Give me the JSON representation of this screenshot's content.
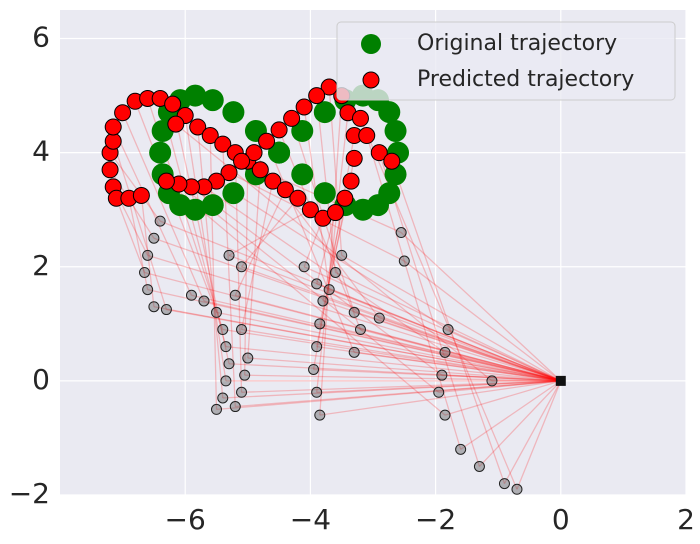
{
  "chart_data": {
    "type": "scatter",
    "xlim": [
      -8,
      2
    ],
    "ylim": [
      -2,
      6.5
    ],
    "xticks": [
      {
        "value": -6,
        "label": "−6"
      },
      {
        "value": -4,
        "label": "−4"
      },
      {
        "value": -2,
        "label": "−2"
      },
      0,
      2
    ],
    "yticks": [
      {
        "value": -2,
        "label": "−2"
      },
      0,
      2,
      4,
      6
    ],
    "grid": true,
    "legend": "upper right",
    "series": [
      {
        "name": "Original trajectory",
        "color": "#008000",
        "x": [
          -2.6,
          -2.64,
          -2.74,
          -2.92,
          -3.16,
          -3.44,
          -3.77,
          -4.13,
          -4.5,
          -4.87,
          -5.23,
          -5.56,
          -5.84,
          -6.08,
          -6.26,
          -6.36,
          -6.4,
          -6.36,
          -6.26,
          -6.08,
          -5.84,
          -5.56,
          -5.23,
          -4.87,
          -4.5,
          -4.13,
          -3.77,
          -3.44,
          -3.16,
          -2.92,
          -2.74,
          -2.64
        ],
        "y": [
          4.0,
          4.38,
          4.71,
          4.92,
          5.0,
          4.92,
          4.71,
          4.38,
          4.0,
          3.62,
          3.29,
          3.08,
          3.0,
          3.08,
          3.29,
          3.62,
          4.0,
          4.38,
          4.71,
          4.92,
          5.0,
          4.92,
          4.71,
          4.38,
          4.0,
          3.62,
          3.29,
          3.08,
          3.0,
          3.08,
          3.29,
          3.62
        ]
      },
      {
        "name": "Predicted trajectory",
        "color": "#ff0000",
        "x": [
          -7.2,
          -7.2,
          -7.15,
          -7.1,
          -6.9,
          -6.7,
          -7.15,
          -7.15,
          -7.0,
          -6.8,
          -6.6,
          -6.4,
          -6.2,
          -6.0,
          -5.8,
          -5.6,
          -5.4,
          -5.2,
          -5.0,
          -4.8,
          -4.6,
          -4.4,
          -4.2,
          -4.0,
          -3.8,
          -3.6,
          -3.45,
          -3.35,
          -3.3,
          -3.3,
          -3.4,
          -3.5,
          -3.7,
          -3.9,
          -4.1,
          -4.3,
          -4.5,
          -4.7,
          -4.9,
          -5.1,
          -5.3,
          -5.5,
          -5.7,
          -5.9,
          -6.1,
          -6.3,
          -3.1,
          -2.9,
          -2.7,
          -3.2,
          -6.15
        ],
        "y": [
          4.0,
          3.7,
          3.4,
          3.2,
          3.2,
          3.25,
          4.2,
          4.45,
          4.7,
          4.9,
          4.95,
          4.95,
          4.85,
          4.65,
          4.45,
          4.3,
          4.15,
          4.0,
          3.85,
          3.7,
          3.5,
          3.35,
          3.2,
          3.0,
          2.85,
          2.95,
          3.2,
          3.5,
          3.9,
          4.3,
          4.7,
          5.0,
          5.15,
          5.0,
          4.8,
          4.6,
          4.4,
          4.2,
          4.0,
          3.85,
          3.65,
          3.5,
          3.4,
          3.4,
          3.45,
          3.5,
          4.3,
          4.0,
          3.85,
          4.6,
          4.5
        ]
      },
      {
        "color": "#555555",
        "x": [
          -6.4,
          -6.5,
          -6.6,
          -6.65,
          -6.6,
          -6.5,
          -6.3,
          -5.9,
          -5.7,
          -5.5,
          -5.4,
          -5.35,
          -5.3,
          -5.35,
          -5.4,
          -5.5,
          -5.2,
          -5.1,
          -5.05,
          -5.0,
          -5.1,
          -5.2,
          -5.1,
          -5.3,
          -4.1,
          -3.9,
          -3.8,
          -3.85,
          -3.9,
          -3.95,
          -3.9,
          -3.85,
          -3.5,
          -3.6,
          -3.7,
          -3.3,
          -3.2,
          -3.3,
          -2.9,
          -2.55,
          -2.5,
          -1.8,
          -1.85,
          -1.9,
          -1.95,
          -1.85,
          -1.6,
          -1.3,
          -0.9,
          -0.7,
          -1.1
        ],
        "y": [
          2.8,
          2.5,
          2.2,
          1.9,
          1.6,
          1.3,
          1.25,
          1.5,
          1.4,
          1.2,
          0.9,
          0.6,
          0.3,
          0.0,
          -0.3,
          -0.5,
          -0.45,
          -0.2,
          0.1,
          0.4,
          0.9,
          1.5,
          2.0,
          2.2,
          2.0,
          1.7,
          1.4,
          1.0,
          0.6,
          0.2,
          -0.2,
          -0.6,
          2.2,
          1.9,
          1.6,
          1.2,
          0.9,
          0.5,
          1.1,
          2.6,
          2.1,
          0.9,
          0.5,
          0.1,
          -0.2,
          -0.6,
          -1.2,
          -1.5,
          -1.8,
          -1.9,
          0.0
        ]
      },
      {
        "color": "#111111",
        "x": [
          0
        ],
        "y": [
          0
        ]
      }
    ]
  }
}
